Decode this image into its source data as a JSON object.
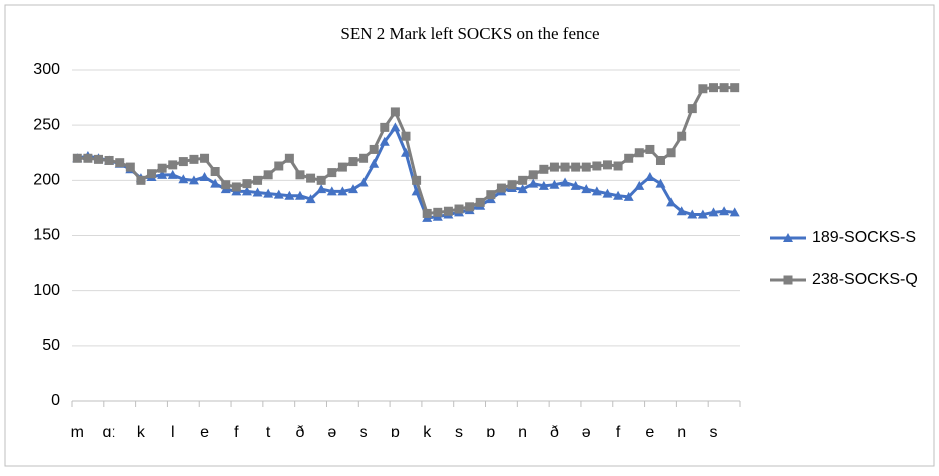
{
  "chart_data": {
    "type": "line",
    "title": "SEN 2 Mark left SOCKS on the fence",
    "categories": [
      "m",
      null,
      null,
      "ɑː",
      null,
      null,
      "k",
      null,
      null,
      "l",
      null,
      null,
      "e",
      null,
      null,
      "f",
      null,
      null,
      "t",
      null,
      null,
      "ð",
      null,
      null,
      "ə",
      null,
      null,
      "s",
      null,
      null,
      "ɒ",
      null,
      null,
      "k",
      null,
      null,
      "s",
      null,
      null,
      "ɒ",
      null,
      null,
      "n",
      null,
      null,
      "ð",
      null,
      null,
      "ə",
      null,
      null,
      "f",
      null,
      null,
      "e",
      null,
      null,
      "n",
      null,
      null,
      "s",
      null,
      null
    ],
    "series": [
      {
        "name": "189-SOCKS-S",
        "color": "#4472c4",
        "marker": "triangle",
        "values": [
          220,
          222,
          220,
          218,
          215,
          210,
          202,
          203,
          205,
          205,
          201,
          200,
          203,
          197,
          192,
          190,
          190,
          189,
          188,
          187,
          186,
          186,
          183,
          192,
          190,
          190,
          192,
          198,
          215,
          235,
          248,
          225,
          190,
          166,
          167,
          169,
          171,
          173,
          177,
          183,
          190,
          193,
          192,
          197,
          195,
          196,
          198,
          195,
          192,
          190,
          188,
          186,
          185,
          195,
          203,
          197,
          180,
          172,
          169,
          169,
          171,
          172,
          171
        ]
      },
      {
        "name": "238-SOCKS-Q",
        "color": "#7f7f7f",
        "marker": "square",
        "values": [
          220,
          220,
          219,
          218,
          216,
          212,
          200,
          206,
          211,
          214,
          217,
          219,
          220,
          208,
          196,
          194,
          197,
          200,
          205,
          213,
          220,
          205,
          202,
          200,
          207,
          212,
          217,
          220,
          228,
          248,
          262,
          240,
          200,
          170,
          171,
          172,
          174,
          176,
          180,
          187,
          193,
          196,
          200,
          205,
          210,
          212,
          212,
          212,
          212,
          213,
          214,
          213,
          220,
          225,
          228,
          218,
          225,
          240,
          265,
          283,
          284,
          284,
          284
        ]
      }
    ],
    "ylim": [
      0,
      300
    ],
    "yticks": [
      0,
      50,
      100,
      150,
      200,
      250,
      300
    ],
    "grid": true,
    "legend": "right"
  }
}
